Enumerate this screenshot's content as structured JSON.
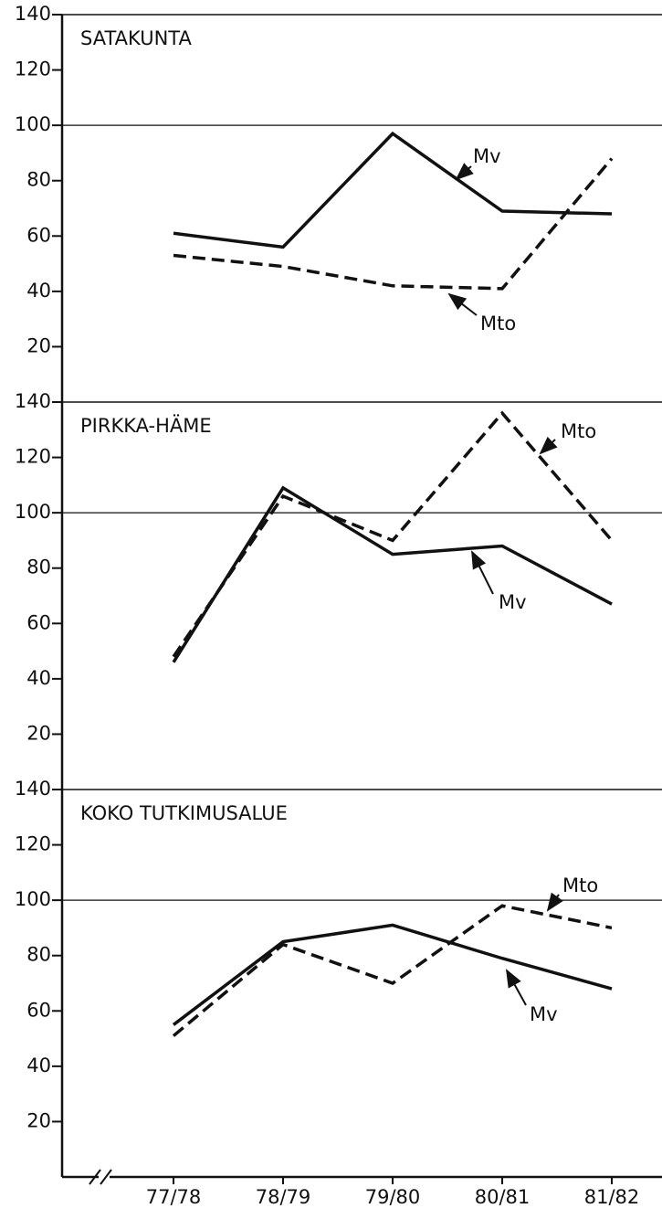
{
  "chart_data": [
    {
      "type": "line",
      "title": "SATAKUNTA",
      "ylim": [
        0,
        140
      ],
      "yticks": [
        20,
        40,
        60,
        80,
        100,
        120,
        140
      ],
      "hlines": [
        100
      ],
      "series": [
        {
          "name": "Mv",
          "color": "#111111",
          "dashed": false,
          "values": [
            61,
            56,
            97,
            69,
            68
          ]
        },
        {
          "name": "Mto",
          "color": "#111111",
          "dashed": true,
          "values": [
            53,
            49,
            42,
            41,
            88
          ]
        }
      ]
    },
    {
      "type": "line",
      "title": "PIRKKA-HÄME",
      "ylim": [
        0,
        140
      ],
      "yticks": [
        20,
        40,
        60,
        80,
        100,
        120,
        140
      ],
      "hlines": [
        100
      ],
      "series": [
        {
          "name": "Mv",
          "color": "#111111",
          "dashed": false,
          "values": [
            46,
            109,
            85,
            88,
            67
          ]
        },
        {
          "name": "Mto",
          "color": "#111111",
          "dashed": true,
          "values": [
            48,
            106,
            90,
            136,
            90
          ]
        }
      ]
    },
    {
      "type": "line",
      "title": "KOKO TUTKIMUSALUE",
      "ylim": [
        0,
        140
      ],
      "yticks": [
        20,
        40,
        60,
        80,
        100,
        120,
        140
      ],
      "hlines": [
        100
      ],
      "categories": [
        "77/78",
        "78/79",
        "79/80",
        "80/81",
        "81/82"
      ],
      "series": [
        {
          "name": "Mv",
          "color": "#111111",
          "dashed": false,
          "values": [
            55,
            85,
            91,
            79,
            68
          ]
        },
        {
          "name": "Mto",
          "color": "#111111",
          "dashed": true,
          "values": [
            51,
            84,
            70,
            98,
            90
          ]
        }
      ]
    }
  ]
}
